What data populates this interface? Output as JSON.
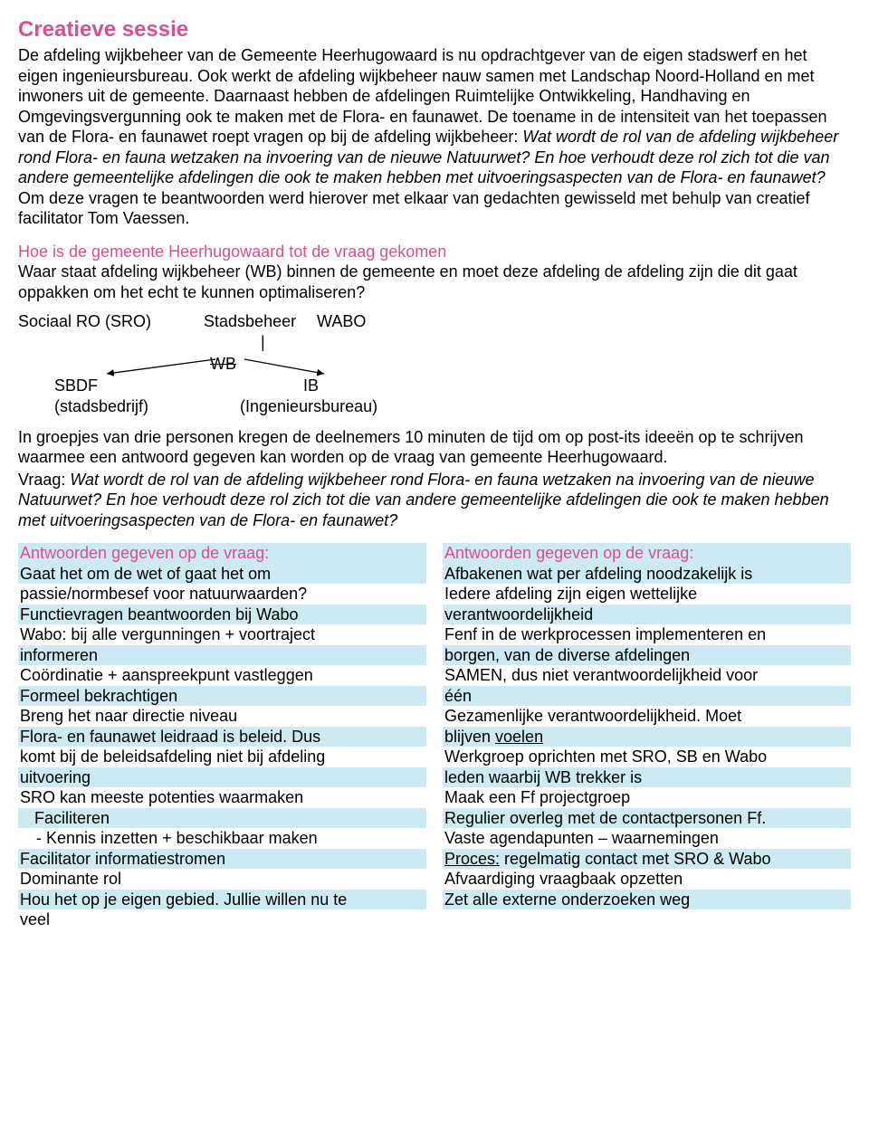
{
  "title": "Creatieve sessie",
  "intro": "De afdeling wijkbeheer van de Gemeente Heerhugowaard is nu opdrachtgever van de eigen stadswerf en het eigen ingenieursbureau. Ook werkt de afdeling wijkbeheer nauw samen met Landschap Noord-Holland en met inwoners uit de gemeente. Daarnaast hebben de afdelingen Ruimtelijke Ontwikkeling, Handhaving en Omgevingsvergunning ook te maken met de Flora- en faunawet. De toename in de intensiteit van het toepassen van de Flora- en faunawet roept vragen op bij de afdeling wijkbeheer: ",
  "intro_italic": "Wat wordt de rol van de afdeling wijkbeheer rond Flora- en fauna wetzaken na invoering van de nieuwe Natuurwet? En hoe verhoudt deze rol zich tot die van andere gemeentelijke afdelingen die ook te maken hebben met uitvoeringsaspecten van de Flora- en faunawet?",
  "intro_tail": "Om deze vragen te beantwoorden werd hierover met elkaar van gedachten gewisseld met behulp van creatief facilitator Tom Vaessen.",
  "subhead1": "Hoe is de gemeente Heerhugowaard tot de vraag gekomen",
  "sub1_text": "Waar staat afdeling wijkbeheer (WB) binnen de gemeente en moet deze afdeling de afdeling zijn die dit gaat oppakken om het echt te kunnen optimaliseren?",
  "diagram": {
    "sro": "Sociaal RO (SRO)",
    "stadsbeheer": "Stadsbeheer",
    "wabo": "WABO",
    "pipe": "|",
    "wb": "WB",
    "sbdf": "SBDF",
    "ib": "IB",
    "stadsbedrijf": "(stadsbedrijf)",
    "ingbureau": "(Ingenieursbureau)"
  },
  "groups_text": "In groepjes van drie personen kregen de deelnemers 10 minuten de tijd om op post-its ideeën op te schrijven waarmee een antwoord gegeven kan worden op de vraag van gemeente Heerhugowaard.",
  "vraag_label": "Vraag: ",
  "vraag_italic": "Wat wordt de rol van de afdeling wijkbeheer rond Flora- en fauna wetzaken na invoering van de nieuwe Natuurwet? En hoe verhoudt deze rol zich tot die van andere gemeentelijke afdelingen die ook te maken hebben met uitvoeringsaspecten van de Flora- en faunawet?",
  "answers_head": "Antwoorden gegeven op de vraag:",
  "col_left": [
    {
      "t": "Gaat het om de wet of gaat het om",
      "hl": true
    },
    {
      "t": "passie/normbesef voor natuurwaarden?",
      "hl": false
    },
    {
      "t": "Functievragen beantwoorden bij Wabo",
      "hl": true
    },
    {
      "t": "Wabo: bij alle vergunningen + voortraject",
      "hl": false
    },
    {
      "t": "informeren",
      "hl": true
    },
    {
      "t": "Coördinatie + aanspreekpunt vastleggen",
      "hl": false
    },
    {
      "t": "Formeel bekrachtigen",
      "hl": true
    },
    {
      "t": "Breng het naar directie niveau",
      "hl": false
    },
    {
      "t": "Flora- en faunawet leidraad is beleid. Dus",
      "hl": true
    },
    {
      "t": "komt bij de beleidsafdeling niet bij afdeling",
      "hl": false
    },
    {
      "t": "uitvoering",
      "hl": true
    },
    {
      "t": "SRO kan meeste potenties waarmaken",
      "hl": false
    },
    {
      "t": "Faciliteren",
      "hl": true,
      "indent": true
    },
    {
      "t": "-    Kennis inzetten + beschikbaar maken",
      "hl": false,
      "dash": true
    },
    {
      "t": "Facilitator informatiestromen",
      "hl": true
    },
    {
      "t": "Dominante rol",
      "hl": false
    },
    {
      "t": "Hou het op je eigen gebied. Jullie willen nu te",
      "hl": true
    },
    {
      "t": "veel",
      "hl": false
    }
  ],
  "col_right": [
    {
      "t": "Afbakenen wat per afdeling noodzakelijk is",
      "hl": true
    },
    {
      "t": "Iedere afdeling zijn eigen wettelijke",
      "hl": false
    },
    {
      "t": "verantwoordelijkheid",
      "hl": true
    },
    {
      "t": "Fenf in de werkprocessen implementeren en",
      "hl": false
    },
    {
      "t": "borgen, van de diverse afdelingen",
      "hl": true
    },
    {
      "t": "SAMEN, dus niet verantwoordelijkheid voor",
      "hl": false
    },
    {
      "t": "één",
      "hl": true
    },
    {
      "t": "Gezamenlijke verantwoordelijkheid. Moet",
      "hl": false
    },
    {
      "pre": "blijven ",
      "u": "voelen",
      "hl": true
    },
    {
      "t": "Werkgroep oprichten met SRO, SB en Wabo",
      "hl": false
    },
    {
      "t": "leden waarbij WB trekker is",
      "hl": true
    },
    {
      "t": "Maak een Ff projectgroep",
      "hl": false
    },
    {
      "t": "Regulier overleg met de contactpersonen Ff.",
      "hl": true
    },
    {
      "t": "Vaste agendapunten – waarnemingen",
      "hl": false
    },
    {
      "u": "Proces:",
      "post": " regelmatig contact met SRO & Wabo",
      "hl": true
    },
    {
      "t": "Afvaardiging vraagbaak opzetten",
      "hl": false
    },
    {
      "t": "Zet alle externe onderzoeken weg",
      "hl": true
    }
  ],
  "colors": {
    "pink": "#d94f8f",
    "highlight": "#cdeaf2"
  }
}
